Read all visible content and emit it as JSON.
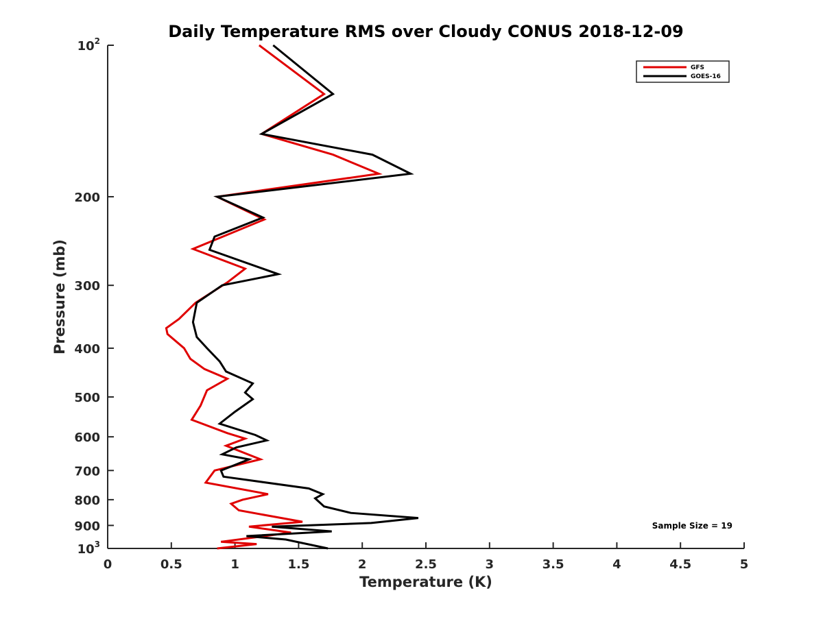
{
  "chart_data": {
    "type": "line",
    "title": "Daily Temperature RMS over Cloudy CONUS 2018-12-09",
    "xlabel": "Temperature (K)",
    "ylabel": "Pressure (mb)",
    "xlim": [
      0,
      5
    ],
    "ylim": [
      100,
      1000
    ],
    "y_scale": "log",
    "y_reversed": true,
    "grid": false,
    "legend_position": "top-right",
    "x_ticks": [
      "0",
      "0.5",
      "1",
      "1.5",
      "2",
      "2.5",
      "3",
      "3.5",
      "4",
      "4.5",
      "5"
    ],
    "y_ticks": [
      {
        "value": 100,
        "base": "10",
        "exp": "2"
      },
      {
        "value": 200,
        "label": "200"
      },
      {
        "value": 300,
        "label": "300"
      },
      {
        "value": 400,
        "label": "400"
      },
      {
        "value": 500,
        "label": "500"
      },
      {
        "value": 600,
        "label": "600"
      },
      {
        "value": 700,
        "label": "700"
      },
      {
        "value": 800,
        "label": "800"
      },
      {
        "value": 900,
        "label": "900"
      },
      {
        "value": 1000,
        "base": "10",
        "exp": "3"
      }
    ],
    "annotation": "Sample Size = 19",
    "series": [
      {
        "name": "GFS",
        "color": "#e00000",
        "points": [
          [
            1.19,
            100
          ],
          [
            1.7,
            125
          ],
          [
            1.21,
            150
          ],
          [
            1.77,
            165
          ],
          [
            2.13,
            180
          ],
          [
            0.86,
            200
          ],
          [
            1.23,
            222
          ],
          [
            0.67,
            254
          ],
          [
            1.08,
            278
          ],
          [
            0.94,
            296
          ],
          [
            0.69,
            325
          ],
          [
            0.56,
            350
          ],
          [
            0.46,
            365
          ],
          [
            0.47,
            375
          ],
          [
            0.6,
            400
          ],
          [
            0.65,
            420
          ],
          [
            0.76,
            440
          ],
          [
            0.94,
            460
          ],
          [
            0.78,
            485
          ],
          [
            0.73,
            520
          ],
          [
            0.66,
            555
          ],
          [
            0.94,
            590
          ],
          [
            1.08,
            605
          ],
          [
            0.93,
            625
          ],
          [
            1.2,
            665
          ],
          [
            0.84,
            700
          ],
          [
            0.77,
            740
          ],
          [
            1.26,
            780
          ],
          [
            1.06,
            800
          ],
          [
            0.97,
            815
          ],
          [
            1.03,
            840
          ],
          [
            1.53,
            885
          ],
          [
            1.11,
            905
          ],
          [
            1.44,
            930
          ],
          [
            0.89,
            970
          ],
          [
            1.17,
            980
          ],
          [
            0.86,
            1000
          ]
        ]
      },
      {
        "name": "GOES-16",
        "color": "#000000",
        "points": [
          [
            1.3,
            100
          ],
          [
            1.77,
            125
          ],
          [
            1.21,
            150
          ],
          [
            2.08,
            165
          ],
          [
            2.38,
            180
          ],
          [
            0.86,
            200
          ],
          [
            1.22,
            220
          ],
          [
            0.84,
            240
          ],
          [
            0.8,
            255
          ],
          [
            1.34,
            285
          ],
          [
            0.9,
            300
          ],
          [
            0.7,
            325
          ],
          [
            0.67,
            355
          ],
          [
            0.7,
            380
          ],
          [
            0.78,
            400
          ],
          [
            0.88,
            425
          ],
          [
            0.93,
            445
          ],
          [
            1.14,
            470
          ],
          [
            1.08,
            490
          ],
          [
            1.14,
            505
          ],
          [
            1.0,
            535
          ],
          [
            0.88,
            565
          ],
          [
            1.16,
            595
          ],
          [
            1.25,
            610
          ],
          [
            1.01,
            630
          ],
          [
            0.9,
            650
          ],
          [
            1.11,
            665
          ],
          [
            1.08,
            670
          ],
          [
            0.89,
            700
          ],
          [
            0.91,
            720
          ],
          [
            1.58,
            760
          ],
          [
            1.69,
            780
          ],
          [
            1.63,
            795
          ],
          [
            1.7,
            825
          ],
          [
            1.91,
            850
          ],
          [
            2.44,
            870
          ],
          [
            2.07,
            890
          ],
          [
            1.29,
            905
          ],
          [
            1.76,
            925
          ],
          [
            1.09,
            945
          ],
          [
            1.4,
            960
          ],
          [
            1.73,
            1000
          ]
        ]
      }
    ]
  }
}
